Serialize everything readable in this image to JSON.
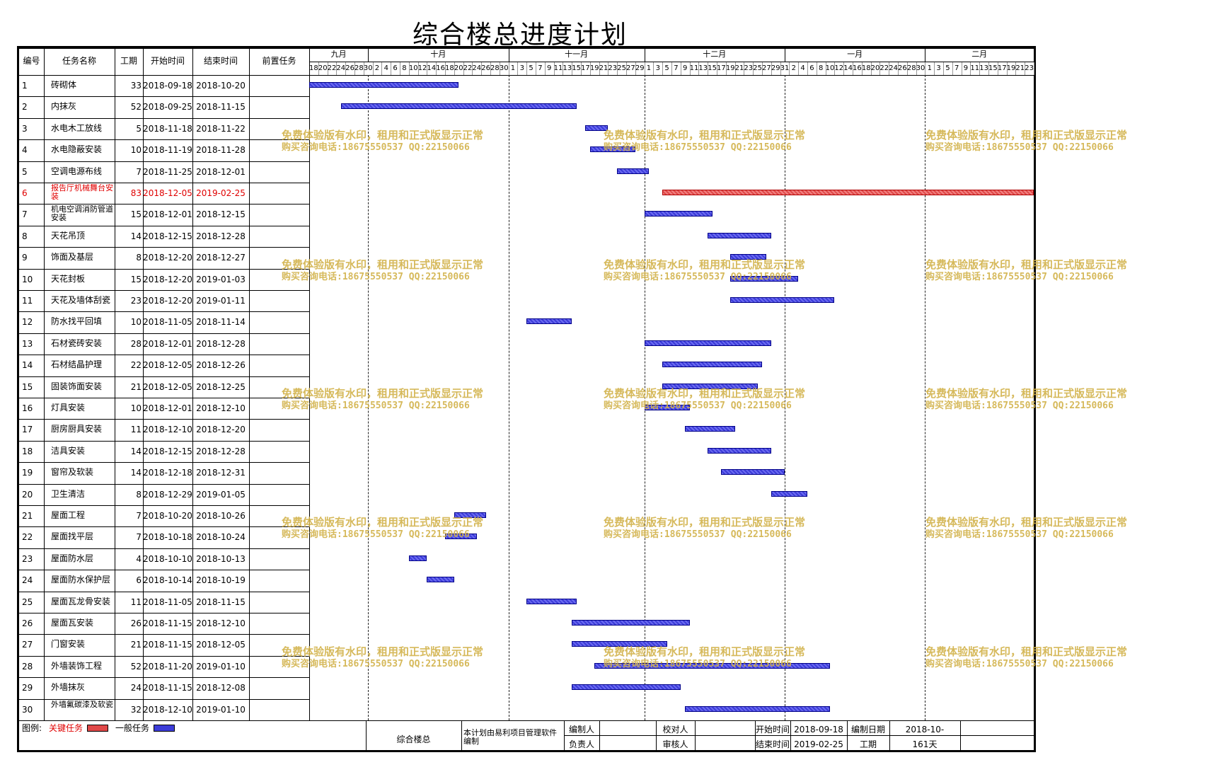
{
  "title": "综合楼总进度计划",
  "columns": [
    "编号",
    "任务名称",
    "工期",
    "开始时间",
    "结束时间",
    "前置任务"
  ],
  "months": [
    "九月",
    "十月",
    "十一月",
    "十二月",
    "一月",
    "二月"
  ],
  "day_labels": [
    "18",
    "20",
    "22",
    "24",
    "26",
    "28",
    "30",
    "2",
    "4",
    "6",
    "8",
    "10",
    "12",
    "14",
    "16",
    "18",
    "20",
    "22",
    "24",
    "26",
    "28",
    "30",
    "1",
    "3",
    "5",
    "7",
    "9",
    "11",
    "13",
    "15",
    "17",
    "19",
    "21",
    "23",
    "25",
    "27",
    "29",
    "1",
    "3",
    "5",
    "7",
    "9",
    "11",
    "13",
    "15",
    "17",
    "19",
    "21",
    "23",
    "25",
    "27",
    "29",
    "31",
    "2",
    "4",
    "6",
    "8",
    "10",
    "12",
    "14",
    "16",
    "18",
    "20",
    "22",
    "24",
    "26",
    "28",
    "30",
    "1",
    "3",
    "5",
    "7",
    "9",
    "11",
    "13",
    "15",
    "17",
    "19",
    "21",
    "23"
  ],
  "tasks": [
    {
      "id": "1",
      "name": "砖砌体",
      "dur": "33",
      "start": "2018-09-18",
      "end": "2018-10-20",
      "pred": ""
    },
    {
      "id": "2",
      "name": "内抹灰",
      "dur": "52",
      "start": "2018-09-25",
      "end": "2018-11-15",
      "pred": ""
    },
    {
      "id": "3",
      "name": "水电木工放线",
      "dur": "5",
      "start": "2018-11-18",
      "end": "2018-11-22",
      "pred": ""
    },
    {
      "id": "4",
      "name": "水电隐蔽安装",
      "dur": "10",
      "start": "2018-11-19",
      "end": "2018-11-28",
      "pred": ""
    },
    {
      "id": "5",
      "name": "空调电源布线",
      "dur": "7",
      "start": "2018-11-25",
      "end": "2018-12-01",
      "pred": ""
    },
    {
      "id": "6",
      "name": "报告厅机械舞台安装",
      "dur": "83",
      "start": "2018-12-05",
      "end": "2019-02-25",
      "pred": "",
      "critical": true
    },
    {
      "id": "7",
      "name": "机电空调消防管道安装",
      "dur": "15",
      "start": "2018-12-01",
      "end": "2018-12-15",
      "pred": ""
    },
    {
      "id": "8",
      "name": "天花吊顶",
      "dur": "14",
      "start": "2018-12-15",
      "end": "2018-12-28",
      "pred": ""
    },
    {
      "id": "9",
      "name": "饰面及基层",
      "dur": "8",
      "start": "2018-12-20",
      "end": "2018-12-27",
      "pred": ""
    },
    {
      "id": "10",
      "name": "天花封板",
      "dur": "15",
      "start": "2018-12-20",
      "end": "2019-01-03",
      "pred": ""
    },
    {
      "id": "11",
      "name": "天花及墙体刮瓷",
      "dur": "23",
      "start": "2018-12-20",
      "end": "2019-01-11",
      "pred": ""
    },
    {
      "id": "12",
      "name": "防水找平回填",
      "dur": "10",
      "start": "2018-11-05",
      "end": "2018-11-14",
      "pred": ""
    },
    {
      "id": "13",
      "name": "石材瓷砖安装",
      "dur": "28",
      "start": "2018-12-01",
      "end": "2018-12-28",
      "pred": ""
    },
    {
      "id": "14",
      "name": "石材结晶护理",
      "dur": "22",
      "start": "2018-12-05",
      "end": "2018-12-26",
      "pred": ""
    },
    {
      "id": "15",
      "name": "固装饰面安装",
      "dur": "21",
      "start": "2018-12-05",
      "end": "2018-12-25",
      "pred": ""
    },
    {
      "id": "16",
      "name": "灯具安装",
      "dur": "10",
      "start": "2018-12-01",
      "end": "2018-12-10",
      "pred": ""
    },
    {
      "id": "17",
      "name": "厨房厨具安装",
      "dur": "11",
      "start": "2018-12-10",
      "end": "2018-12-20",
      "pred": ""
    },
    {
      "id": "18",
      "name": "洁具安装",
      "dur": "14",
      "start": "2018-12-15",
      "end": "2018-12-28",
      "pred": ""
    },
    {
      "id": "19",
      "name": "窗帘及软装",
      "dur": "14",
      "start": "2018-12-18",
      "end": "2018-12-31",
      "pred": ""
    },
    {
      "id": "20",
      "name": "卫生清洁",
      "dur": "8",
      "start": "2018-12-29",
      "end": "2019-01-05",
      "pred": ""
    },
    {
      "id": "21",
      "name": "屋面工程",
      "dur": "7",
      "start": "2018-10-20",
      "end": "2018-10-26",
      "pred": ""
    },
    {
      "id": "22",
      "name": "屋面找平层",
      "dur": "7",
      "start": "2018-10-18",
      "end": "2018-10-24",
      "pred": ""
    },
    {
      "id": "23",
      "name": "屋面防水层",
      "dur": "4",
      "start": "2018-10-10",
      "end": "2018-10-13",
      "pred": ""
    },
    {
      "id": "24",
      "name": "屋面防水保护层",
      "dur": "6",
      "start": "2018-10-14",
      "end": "2018-10-19",
      "pred": ""
    },
    {
      "id": "25",
      "name": "屋面瓦龙骨安装",
      "dur": "11",
      "start": "2018-11-05",
      "end": "2018-11-15",
      "pred": ""
    },
    {
      "id": "26",
      "name": "屋面瓦安装",
      "dur": "26",
      "start": "2018-11-15",
      "end": "2018-12-10",
      "pred": ""
    },
    {
      "id": "27",
      "name": "门窗安装",
      "dur": "21",
      "start": "2018-11-15",
      "end": "2018-12-05",
      "pred": ""
    },
    {
      "id": "28",
      "name": "外墙装饰工程",
      "dur": "52",
      "start": "2018-11-20",
      "end": "2019-01-10",
      "pred": ""
    },
    {
      "id": "29",
      "name": "外墙抹灰",
      "dur": "24",
      "start": "2018-11-15",
      "end": "2018-12-08",
      "pred": ""
    },
    {
      "id": "30",
      "name": "外墙氟碳漆及软瓷",
      "dur": "32",
      "start": "2018-12-10",
      "end": "2019-01-10",
      "pred": ""
    }
  ],
  "legend": {
    "label": "图例:",
    "critical": "关键任务",
    "normal": "一般任务"
  },
  "footer": {
    "project": "综合楼总",
    "software": "本计划由易利项目管理软件编制",
    "compiler_label": "编制人",
    "checker_label": "校对人",
    "owner_label": "负责人",
    "reviewer_label": "审核人",
    "start_label": "开始时间",
    "start_value": "2018-09-18",
    "end_label": "结束时间",
    "end_value": "2019-02-25",
    "date_label": "编制日期",
    "date_value": "2018-10-",
    "dur_label": "工期",
    "dur_value": "161天"
  },
  "watermark": {
    "line1": "免费体验版有水印，租用和正式版显示正常",
    "line2": "购买咨询电话:18675550537 QQ:22150066"
  },
  "colors": {
    "critical": "#e04848",
    "normal": "#3c3cd8",
    "critical_text": "#e00000",
    "watermark": "#d2b24a"
  }
}
